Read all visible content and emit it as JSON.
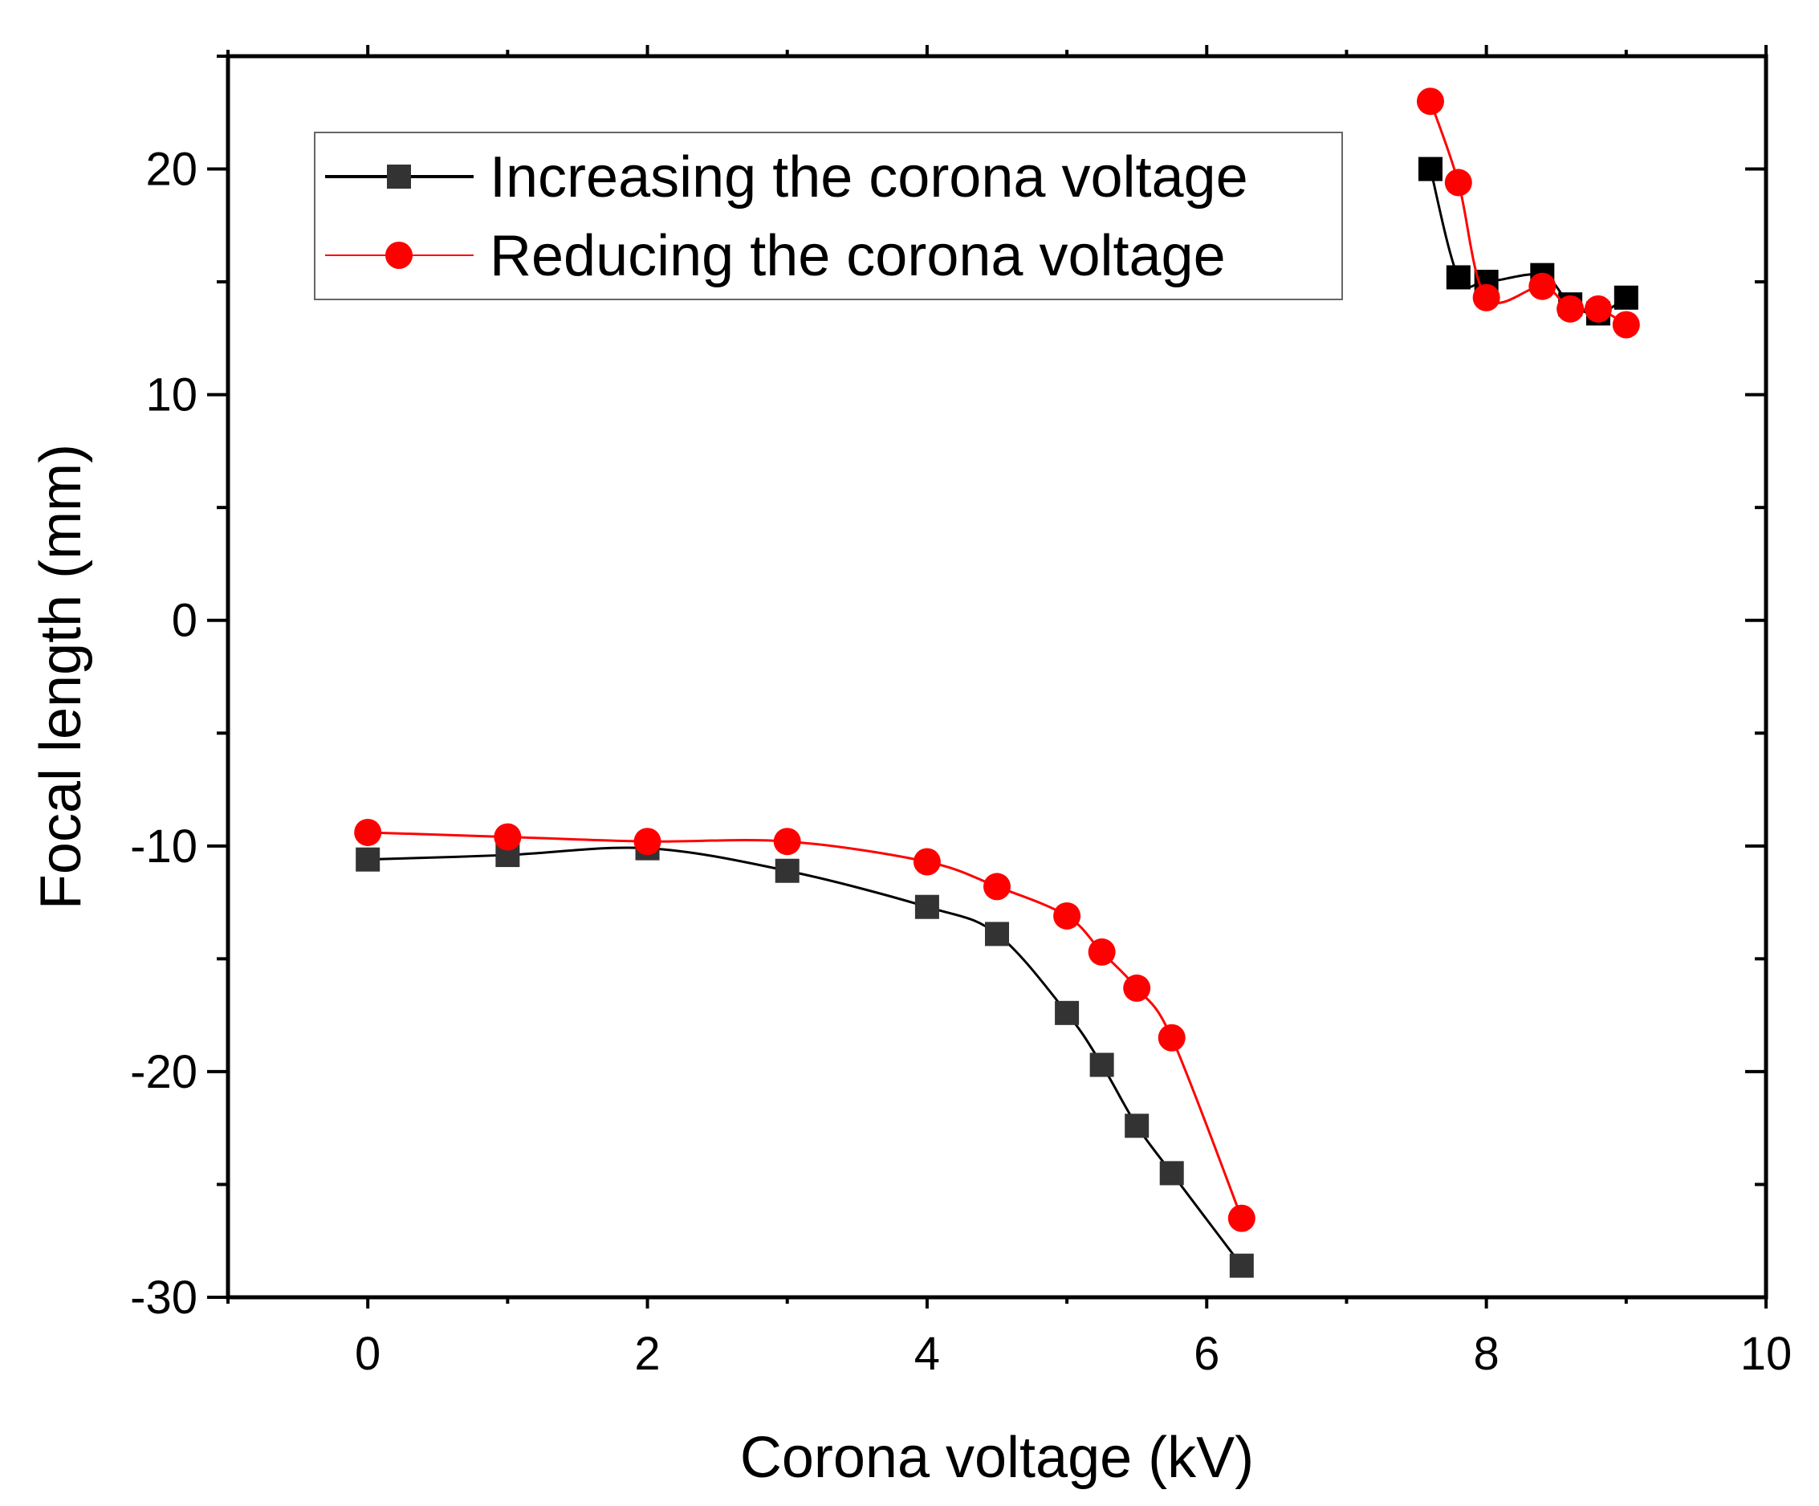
{
  "chart_data": {
    "type": "line",
    "title": "",
    "xlabel": "Corona voltage (kV)",
    "ylabel": "Focal length (mm)",
    "xlim": [
      -1,
      10
    ],
    "ylim": [
      -30,
      25
    ],
    "x_ticks": [
      0,
      2,
      4,
      6,
      8,
      10
    ],
    "x_tick_labels": [
      "0",
      "2",
      "4",
      "6",
      "8",
      "10"
    ],
    "y_ticks": [
      -30,
      -20,
      -10,
      0,
      10,
      20
    ],
    "y_tick_labels": [
      "-30",
      "-20",
      "-10",
      "0",
      "10",
      "20"
    ],
    "legend_position": "top-left",
    "series": [
      {
        "name": "Increasing the corona voltage",
        "color": "#000000",
        "marker": "square",
        "segments": [
          {
            "x": [
              0,
              1,
              2,
              3,
              4,
              4.5,
              5,
              5.25,
              5.5,
              5.75,
              6.25
            ],
            "y": [
              -10.6,
              -10.4,
              -10.1,
              -11.1,
              -12.7,
              -13.9,
              -17.4,
              -19.7,
              -22.4,
              -24.5,
              -28.6
            ]
          },
          {
            "x": [
              7.6,
              7.8,
              8.0,
              8.4,
              8.6,
              8.8,
              9.0
            ],
            "y": [
              20.0,
              15.2,
              15.0,
              15.3,
              14.0,
              13.6,
              14.3
            ]
          }
        ]
      },
      {
        "name": "Reducing the corona voltage",
        "color": "#ff0000",
        "marker": "circle",
        "segments": [
          {
            "x": [
              0,
              1,
              2,
              3,
              4,
              4.5,
              5,
              5.25,
              5.5,
              5.75,
              6.25
            ],
            "y": [
              -9.4,
              -9.6,
              -9.8,
              -9.8,
              -10.7,
              -11.8,
              -13.1,
              -14.7,
              -16.3,
              -18.5,
              -26.5
            ]
          },
          {
            "x": [
              7.6,
              7.8,
              8.0,
              8.4,
              8.6,
              8.8,
              9.0
            ],
            "y": [
              23.0,
              19.4,
              14.3,
              14.8,
              13.8,
              13.8,
              13.1
            ]
          }
        ]
      }
    ]
  }
}
